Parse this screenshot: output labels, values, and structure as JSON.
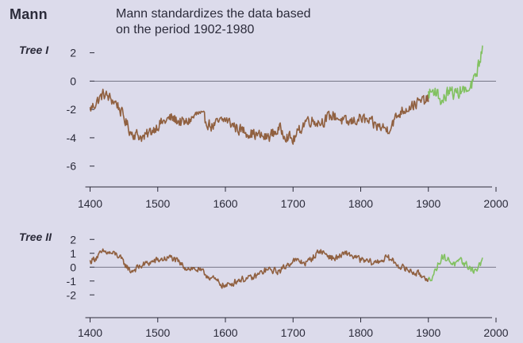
{
  "title": "Mann",
  "note": {
    "line1": "Mann standardizes the data based",
    "line2": "on the period 1902-1980"
  },
  "colors": {
    "background": "#dcdbeb",
    "proxy": "#8b5a37",
    "instrumental": "#7cc05a",
    "axis": "#2b2b3a"
  },
  "chart_data": [
    {
      "type": "line",
      "panel_label": "Tree I",
      "x_range": [
        1400,
        1980
      ],
      "xlim": [
        1390,
        2000
      ],
      "ylim": [
        -6.8,
        3.6
      ],
      "yticks": [
        2,
        0,
        -2,
        -4,
        -6
      ],
      "xticks": [
        1400,
        1500,
        1600,
        1700,
        1800,
        1900,
        2000
      ],
      "zero_line": true,
      "series": [
        {
          "role": "proxy",
          "x_start": 1400,
          "x_end": 1900,
          "step": 20,
          "values": [
            -2.0,
            -0.9,
            -1.6,
            -3.6,
            -4.0,
            -3.1,
            -2.6,
            -3.0,
            -2.3,
            -3.2,
            -2.7,
            -3.4,
            -3.7,
            -4.0,
            -3.4,
            -4.2,
            -2.7,
            -2.9,
            -2.4,
            -3.0,
            -2.6,
            -3.1,
            -3.4,
            -2.1,
            -1.6,
            -1.3
          ]
        },
        {
          "role": "instrumental",
          "x_start": 1900,
          "x_end": 1980,
          "step": 10,
          "values": [
            -0.9,
            -0.6,
            -1.5,
            -0.7,
            -0.9,
            -0.6,
            -0.8,
            0.4,
            2.2
          ]
        }
      ]
    },
    {
      "type": "line",
      "panel_label": "Tree II",
      "x_range": [
        1400,
        1980
      ],
      "xlim": [
        1390,
        2000
      ],
      "ylim": [
        -3.3,
        2.7
      ],
      "yticks": [
        2,
        1,
        0,
        -1,
        -2
      ],
      "xticks": [
        1400,
        1500,
        1600,
        1700,
        1800,
        1900,
        2000
      ],
      "zero_line": true,
      "series": [
        {
          "role": "proxy",
          "x_start": 1400,
          "x_end": 1900,
          "step": 20,
          "values": [
            0.4,
            1.1,
            0.9,
            -0.3,
            0.2,
            0.5,
            0.7,
            0.0,
            -0.2,
            -0.8,
            -1.4,
            -0.9,
            -0.8,
            -0.2,
            -0.3,
            0.5,
            0.3,
            1.2,
            0.6,
            1.0,
            0.5,
            0.3,
            0.7,
            0.0,
            -0.4,
            -0.8
          ]
        },
        {
          "role": "instrumental",
          "x_start": 1900,
          "x_end": 1980,
          "step": 10,
          "values": [
            -1.0,
            -0.3,
            0.8,
            0.5,
            0.2,
            0.4,
            0.0,
            -0.3,
            0.5
          ]
        }
      ]
    }
  ]
}
